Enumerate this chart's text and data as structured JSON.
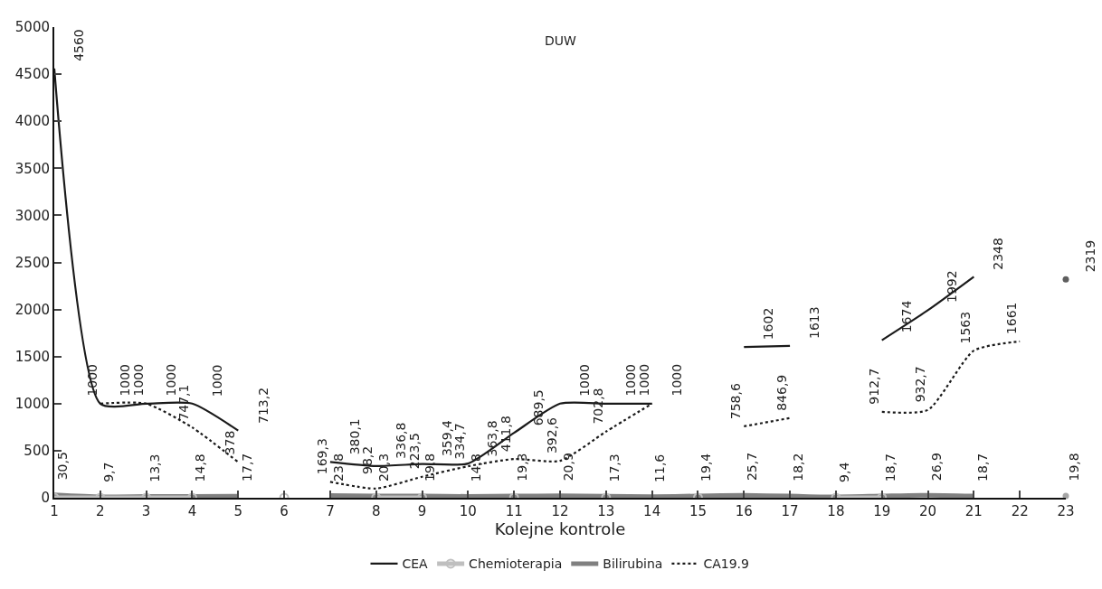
{
  "chart_data": {
    "type": "line",
    "title": "DUW",
    "xlabel": "Kolejne kontrole",
    "x": [
      1,
      2,
      3,
      4,
      5,
      6,
      7,
      8,
      9,
      10,
      11,
      12,
      13,
      14,
      15,
      16,
      17,
      18,
      19,
      20,
      21,
      22,
      23
    ],
    "xlim": [
      1,
      23
    ],
    "xticks": [
      1,
      2,
      3,
      4,
      5,
      6,
      7,
      8,
      9,
      10,
      11,
      12,
      13,
      14,
      15,
      16,
      17,
      18,
      19,
      20,
      21,
      22,
      23
    ],
    "ylim": [
      0,
      5000
    ],
    "yticks": [
      0,
      500,
      1000,
      1500,
      2000,
      2500,
      3000,
      3500,
      4000,
      4500,
      5000
    ],
    "legend": "bottom",
    "series": [
      {
        "name": "CEA",
        "color": "#1a1a1a",
        "line_style": "solid",
        "values": [
          4560,
          1000,
          1000,
          1000,
          713.2,
          null,
          380.1,
          336.8,
          359.4,
          363.8,
          689.5,
          1000,
          1000,
          1000,
          null,
          1602,
          1613,
          null,
          1674,
          1992,
          2348,
          null,
          2319
        ],
        "value_labels": [
          "4560",
          "1000",
          "1000",
          "1000",
          "713,2",
          null,
          "380,1",
          "336,8",
          "359,4",
          "363,8",
          "689,5",
          "1000",
          "1000",
          "1000",
          null,
          "1602",
          "1613",
          null,
          "1674",
          "1992",
          "2348",
          null,
          "2319"
        ]
      },
      {
        "name": "Chemioterapia",
        "color": "#bfbfbf",
        "line_style": "solid",
        "marker": "circle",
        "values": [
          0,
          0,
          0,
          0,
          null,
          0,
          null,
          0,
          0,
          null,
          0,
          null,
          0,
          null,
          0,
          null,
          null,
          0,
          0,
          null,
          null,
          null,
          null
        ]
      },
      {
        "name": "Bilirubina",
        "color": "#808080",
        "line_style": "solid",
        "values": [
          30.5,
          9.7,
          13.3,
          14.8,
          17.7,
          null,
          23.8,
          20.3,
          19.8,
          14.8,
          19.3,
          20.9,
          17.3,
          11.6,
          19.4,
          25.7,
          18.2,
          9.4,
          18.7,
          26.9,
          18.7,
          null,
          19.8
        ],
        "value_labels": [
          "30,5",
          "9,7",
          "13,3",
          "14,8",
          "17,7",
          null,
          "23,8",
          "20,3",
          "19,8",
          "14,8",
          "19,3",
          "20,9",
          "17,3",
          "11,6",
          "19,4",
          "25,7",
          "18,2",
          "9,4",
          "18,7",
          "26,9",
          "18,7",
          null,
          "19,8"
        ]
      },
      {
        "name": "CA19.9",
        "color": "#1a1a1a",
        "line_style": "dotted",
        "values": [
          null,
          1000,
          1000,
          747.1,
          378,
          null,
          169.3,
          98.2,
          223.5,
          334.7,
          411.8,
          392.6,
          702.8,
          1000,
          null,
          758.6,
          846.9,
          null,
          912.7,
          932.7,
          1563,
          1661,
          null
        ],
        "value_labels": [
          null,
          "1000",
          "1000",
          "747,1",
          "378",
          null,
          "169,3",
          "98,2",
          "223,5",
          "334,7",
          "411,8",
          "392,6",
          "702,8",
          "1000",
          null,
          "758,6",
          "846,9",
          null,
          "912,7",
          "932,7",
          "1563",
          "1661",
          null
        ]
      }
    ]
  }
}
